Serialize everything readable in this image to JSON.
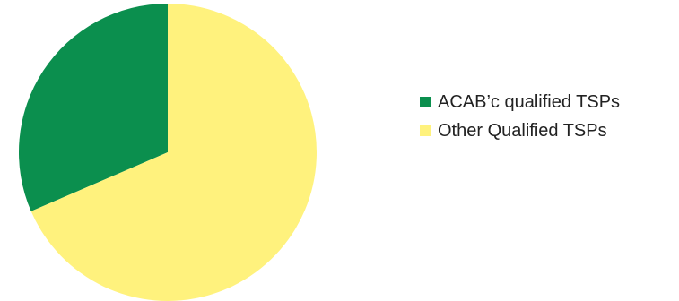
{
  "chart_data": {
    "type": "pie",
    "title": "",
    "series": [
      {
        "values": [
          31.5,
          68.5
        ]
      }
    ],
    "categories": [
      "ACAB’c qualified TSPs",
      "Other Qualified TSPs"
    ],
    "colors": [
      "#0b8f4e",
      "#fff27d"
    ],
    "start_angle_deg": 0,
    "direction": "counterclockwise",
    "legend": {
      "position": "right"
    }
  }
}
